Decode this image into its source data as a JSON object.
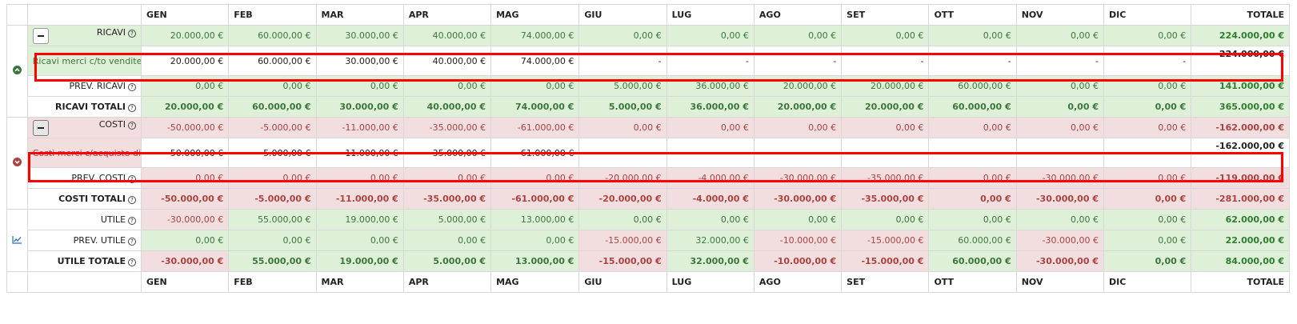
{
  "months": [
    "GEN",
    "FEB",
    "MAR",
    "APR",
    "MAG",
    "GIU",
    "LUG",
    "AGO",
    "SET",
    "OTT",
    "NOV",
    "DIC"
  ],
  "total_header": "TOTALE",
  "rows": {
    "ricavi": {
      "label": "RICAVI",
      "values": [
        "20.000,00 €",
        "60.000,00 €",
        "30.000,00 €",
        "40.000,00 €",
        "74.000,00 €",
        "0,00 €",
        "0,00 €",
        "0,00 €",
        "0,00 €",
        "0,00 €",
        "0,00 €",
        "0,00 €"
      ],
      "total": "224.000,00 €"
    },
    "ricavi_detail": {
      "label": "Ricavi merci c/to vendite",
      "values": [
        "20.000,00 €",
        "60.000,00 €",
        "30.000,00 €",
        "40.000,00 €",
        "74.000,00 €",
        "-",
        "-",
        "-",
        "-",
        "-",
        "-",
        "-"
      ],
      "total": "224.000,00 €"
    },
    "prev_ricavi": {
      "label": "PREV. RICAVI",
      "values": [
        "0,00 €",
        "0,00 €",
        "0,00 €",
        "0,00 €",
        "0,00 €",
        "5.000,00 €",
        "36.000,00 €",
        "20.000,00 €",
        "20.000,00 €",
        "60.000,00 €",
        "0,00 €",
        "0,00 €"
      ],
      "total": "141.000,00 €"
    },
    "ricavi_totali": {
      "label": "RICAVI TOTALI",
      "values": [
        "20.000,00 €",
        "60.000,00 €",
        "30.000,00 €",
        "40.000,00 €",
        "74.000,00 €",
        "5.000,00 €",
        "36.000,00 €",
        "20.000,00 €",
        "20.000,00 €",
        "60.000,00 €",
        "0,00 €",
        "0,00 €"
      ],
      "total": "365.000,00 €"
    },
    "costi": {
      "label": "COSTI",
      "values": [
        "-50.000,00 €",
        "-5.000,00 €",
        "-11.000,00 €",
        "-35.000,00 €",
        "-61.000,00 €",
        "0,00 €",
        "0,00 €",
        "0,00 €",
        "0,00 €",
        "0,00 €",
        "0,00 €",
        "0,00 €"
      ],
      "total": "-162.000,00 €"
    },
    "costi_detail": {
      "label": "Costi merci c/acquisto di produzione",
      "values": [
        "-50.000,00 €",
        "-5.000,00 €",
        "-11.000,00 €",
        "-35.000,00 €",
        "-61.000,00 €",
        "-",
        "-",
        "-",
        "-",
        "-",
        "-",
        "-"
      ],
      "total": "-162.000,00 €"
    },
    "prev_costi": {
      "label": "PREV. COSTI",
      "values": [
        "0,00 €",
        "0,00 €",
        "0,00 €",
        "0,00 €",
        "0,00 €",
        "-20.000,00 €",
        "-4.000,00 €",
        "-30.000,00 €",
        "-35.000,00 €",
        "0,00 €",
        "-30.000,00 €",
        "0,00 €"
      ],
      "total": "-119.000,00 €"
    },
    "costi_totali": {
      "label": "COSTI TOTALI",
      "values": [
        "-50.000,00 €",
        "-5.000,00 €",
        "-11.000,00 €",
        "-35.000,00 €",
        "-61.000,00 €",
        "-20.000,00 €",
        "-4.000,00 €",
        "-30.000,00 €",
        "-35.000,00 €",
        "0,00 €",
        "-30.000,00 €",
        "0,00 €"
      ],
      "total": "-281.000,00 €"
    },
    "utile": {
      "label": "UTILE",
      "values": [
        "-30.000,00 €",
        "55.000,00 €",
        "19.000,00 €",
        "5.000,00 €",
        "13.000,00 €",
        "0,00 €",
        "0,00 €",
        "0,00 €",
        "0,00 €",
        "0,00 €",
        "0,00 €",
        "0,00 €"
      ],
      "total": "62.000,00 €"
    },
    "prev_utile": {
      "label": "PREV. UTILE",
      "values": [
        "0,00 €",
        "0,00 €",
        "0,00 €",
        "0,00 €",
        "0,00 €",
        "-15.000,00 €",
        "32.000,00 €",
        "-10.000,00 €",
        "-15.000,00 €",
        "60.000,00 €",
        "-30.000,00 €",
        "0,00 €"
      ],
      "total": "22.000,00 €"
    },
    "utile_totale": {
      "label": "UTILE TOTALE",
      "values": [
        "-30.000,00 €",
        "55.000,00 €",
        "19.000,00 €",
        "5.000,00 €",
        "13.000,00 €",
        "-15.000,00 €",
        "32.000,00 €",
        "-10.000,00 €",
        "-15.000,00 €",
        "60.000,00 €",
        "-30.000,00 €",
        "0,00 €"
      ],
      "total": "84.000,00 €"
    }
  },
  "colors": {
    "positive_bg": "#dff0d8",
    "positive_text": "#3c763d",
    "negative_bg": "#f2dede",
    "negative_text": "#a94442",
    "highlight_border": "#ff0000"
  },
  "icons": {
    "help": "question-circle-icon",
    "collapse": "minus-icon",
    "expand_up": "chevron-circle-up-icon",
    "expand_down": "chevron-circle-down-icon",
    "chart": "line-chart-icon"
  }
}
